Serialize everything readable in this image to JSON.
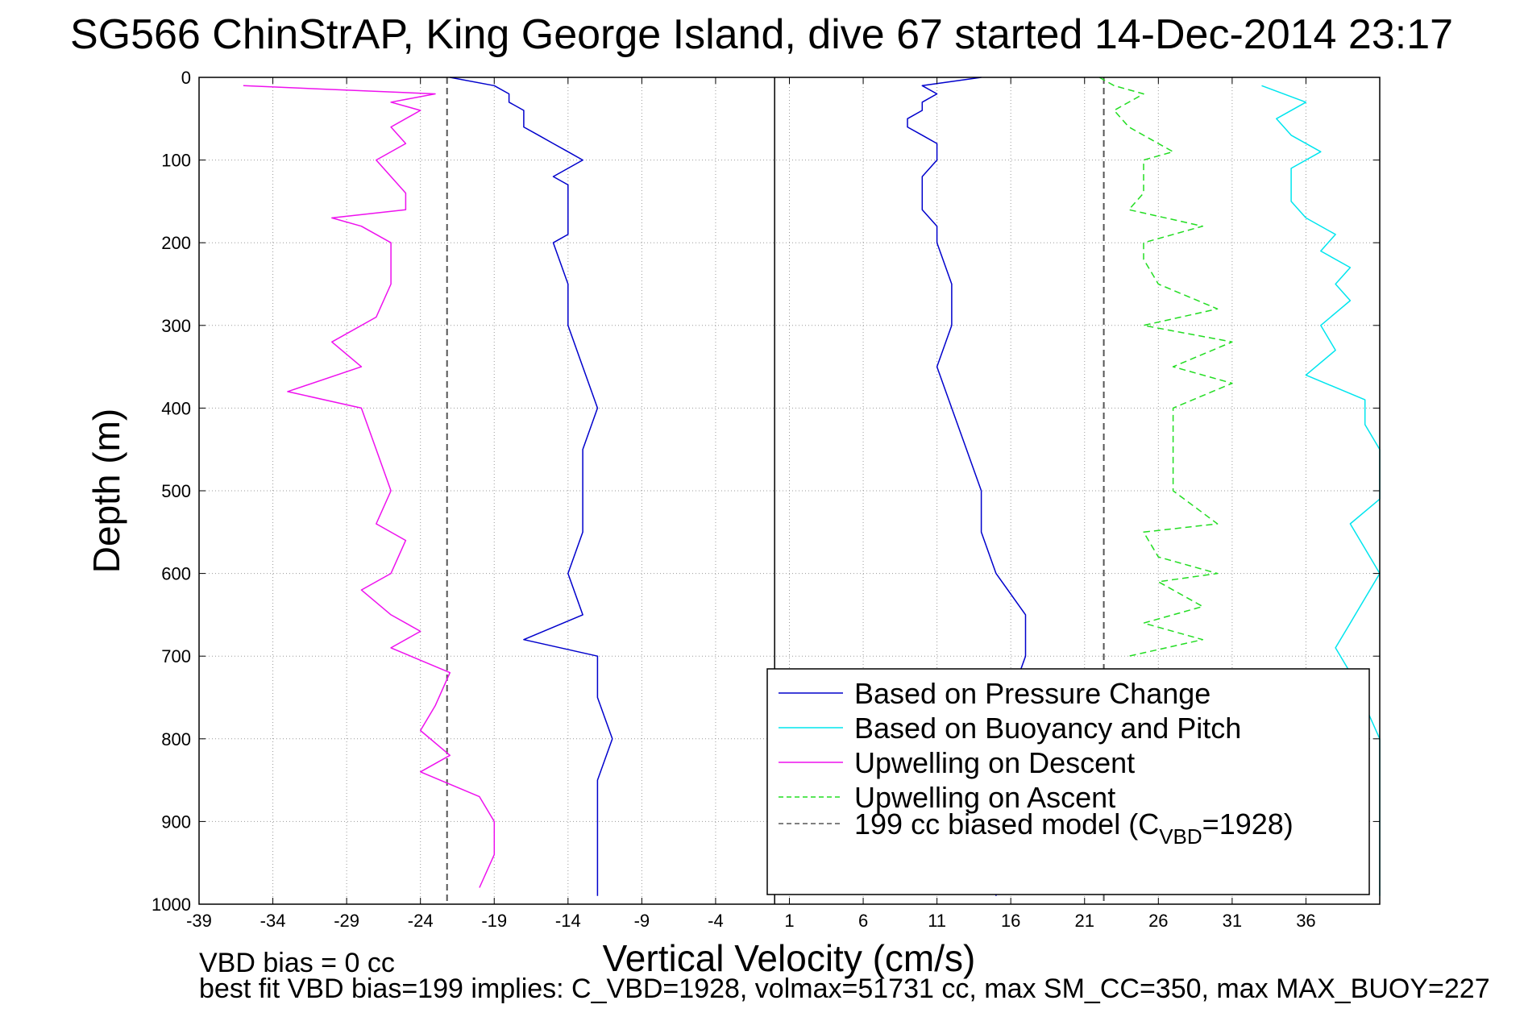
{
  "chart_data": {
    "type": "line",
    "title": "SG566 ChinStrAP, King George Island, dive 67 started 14-Dec-2014 23:17",
    "xlabel": "Vertical Velocity (cm/s)",
    "ylabel": "Depth (m)",
    "xlim": [
      -39,
      41
    ],
    "ylim": [
      0,
      1000
    ],
    "y_reversed": true,
    "grid": true,
    "x_ticks": [
      "-39",
      "-34",
      "-29",
      "-24",
      "-19",
      "-14",
      "-9",
      "-4",
      "1",
      "6",
      "11",
      "16",
      "21",
      "26",
      "31",
      "36"
    ],
    "y_ticks": [
      "0",
      "100",
      "200",
      "300",
      "400",
      "500",
      "600",
      "700",
      "800",
      "900",
      "1000"
    ],
    "legend_position": "bottom-right",
    "colors": {
      "pressure": "#0000cc",
      "buoyancy": "#00e5ee",
      "upwelling_descent": "#ee11ee",
      "upwelling_ascent": "#22dd22",
      "model": "#555555",
      "zero_line": "#000000"
    },
    "series": [
      {
        "name": "Based on Pressure Change",
        "style": "solid",
        "color": "#0000cc",
        "segments": [
          {
            "depth": [
              0,
              10,
              20,
              30,
              40,
              50,
              60,
              70,
              80,
              90,
              100,
              110,
              120,
              130,
              140,
              150,
              160,
              170,
              180,
              190,
              200,
              250,
              300,
              350,
              400,
              450,
              500,
              550,
              600,
              650,
              680,
              700,
              750,
              800,
              850,
              900,
              950,
              990
            ],
            "velocity": [
              -22,
              -19,
              -18,
              -18,
              -17,
              -17,
              -17,
              -16,
              -15,
              -14,
              -13,
              -14,
              -15,
              -14,
              -14,
              -14,
              -14,
              -14,
              -14,
              -14,
              -15,
              -14,
              -14,
              -13,
              -12,
              -13,
              -13,
              -13,
              -14,
              -13,
              -17,
              -12,
              -12,
              -11,
              -12,
              -12,
              -12,
              -12
            ]
          },
          {
            "depth": [
              0,
              10,
              20,
              30,
              40,
              50,
              60,
              70,
              80,
              90,
              100,
              120,
              140,
              160,
              180,
              200,
              250,
              300,
              350,
              400,
              450,
              500,
              550,
              600,
              650,
              700,
              750,
              800,
              850,
              900,
              950,
              990
            ],
            "velocity": [
              14,
              10,
              11,
              10,
              10,
              9,
              9,
              10,
              11,
              11,
              11,
              10,
              10,
              10,
              11,
              11,
              12,
              12,
              11,
              12,
              13,
              14,
              14,
              15,
              17,
              17,
              16,
              16,
              16,
              16,
              15,
              15
            ]
          }
        ]
      },
      {
        "name": "Based on Buoyancy and Pitch",
        "style": "solid",
        "color": "#00e5ee",
        "segments": [
          {
            "depth": [
              10,
              30,
              50,
              70,
              90,
              110,
              130,
              150,
              170,
              190,
              210,
              230,
              250,
              270,
              300,
              330,
              360,
              390,
              420,
              450,
              480,
              510,
              540,
              570,
              600,
              630,
              660,
              690,
              720,
              760,
              800,
              850,
              900,
              950,
              990
            ],
            "velocity": [
              33,
              36,
              34,
              35,
              37,
              35,
              35,
              35,
              36,
              38,
              37,
              39,
              38,
              39,
              37,
              38,
              36,
              40,
              40,
              41,
              41,
              41,
              39,
              40,
              41,
              40,
              39,
              38,
              39,
              40,
              41,
              41,
              41,
              41,
              41
            ]
          }
        ]
      },
      {
        "name": "Upwelling on Descent",
        "style": "solid",
        "color": "#ee11ee",
        "segments": [
          {
            "depth": [
              10,
              20,
              30,
              40,
              60,
              80,
              100,
              120,
              140,
              160,
              170,
              180,
              200,
              250,
              290,
              320,
              350,
              380,
              400,
              450,
              500,
              540,
              560,
              600,
              620,
              650,
              670,
              690,
              720,
              760,
              790,
              820,
              840,
              870,
              900,
              940,
              980
            ],
            "velocity": [
              -36,
              -23,
              -26,
              -24,
              -26,
              -25,
              -27,
              -26,
              -25,
              -25,
              -30,
              -28,
              -26,
              -26,
              -27,
              -30,
              -28,
              -33,
              -28,
              -27,
              -26,
              -27,
              -25,
              -26,
              -28,
              -26,
              -24,
              -26,
              -22,
              -23,
              -24,
              -22,
              -24,
              -20,
              -19,
              -19,
              -20
            ]
          }
        ]
      },
      {
        "name": "Upwelling on Ascent",
        "style": "dashed",
        "color": "#22dd22",
        "segments": [
          {
            "depth": [
              0,
              10,
              20,
              40,
              60,
              80,
              90,
              100,
              120,
              140,
              160,
              180,
              200,
              220,
              250,
              280,
              300,
              320,
              350,
              370,
              400,
              450,
              500,
              540,
              550,
              580,
              600,
              610,
              640,
              660,
              680,
              700
            ],
            "velocity": [
              22,
              23,
              25,
              23,
              24,
              26,
              27,
              25,
              25,
              25,
              24,
              29,
              25,
              25,
              26,
              30,
              25,
              31,
              27,
              31,
              27,
              27,
              27,
              30,
              25,
              26,
              30,
              26,
              29,
              25,
              29,
              24
            ]
          }
        ]
      },
      {
        "name": "199 cc biased model (C_VBD=1928)",
        "style": "dashed",
        "color": "#555555",
        "segments": [
          {
            "depth": [
              0,
              1000
            ],
            "velocity": [
              -22.2,
              -22.2
            ]
          },
          {
            "depth": [
              0,
              1000
            ],
            "velocity": [
              22.3,
              22.3
            ]
          }
        ]
      }
    ],
    "reference_line": {
      "name": "zero",
      "velocity": 0
    },
    "legend": {
      "entries": [
        {
          "label": "Based on Pressure Change",
          "color": "#0000cc",
          "style": "solid"
        },
        {
          "label": "Based on Buoyancy and Pitch",
          "color": "#00e5ee",
          "style": "solid"
        },
        {
          "label": "Upwelling on Descent",
          "color": "#ee11ee",
          "style": "solid"
        },
        {
          "label": "Upwelling on Ascent",
          "color": "#22dd22",
          "style": "dashed"
        },
        {
          "label_main": "199 cc biased model (C",
          "label_sub": "VBD",
          "label_end": "=1928)",
          "color": "#555555",
          "style": "dashed"
        }
      ]
    },
    "annotations": [
      "VBD bias = 0 cc",
      "best fit VBD bias=199 implies: C_VBD=1928, volmax=51731 cc, max SM_CC=350, max MAX_BUOY=227"
    ]
  }
}
